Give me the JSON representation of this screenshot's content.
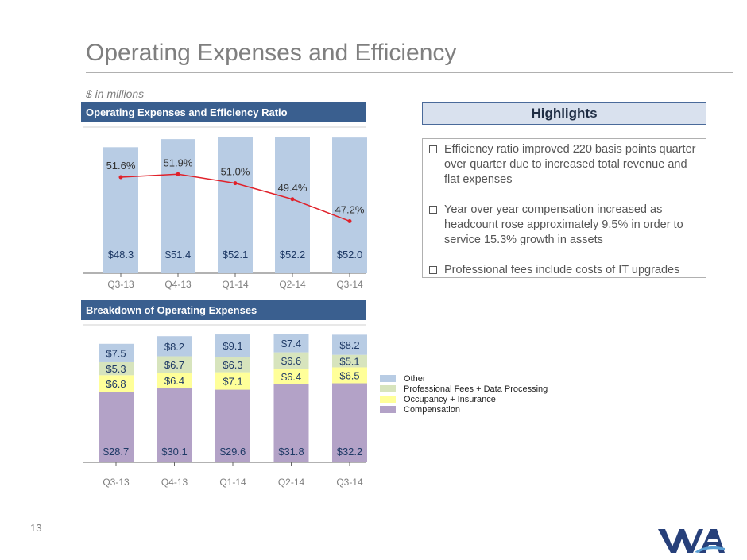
{
  "slide": {
    "title": "Operating Expenses and Efficiency",
    "units_note": "$ in millions",
    "page_number": "13"
  },
  "colors": {
    "header_bar": "#3a5f8f",
    "bar_blue": "#b8cce4",
    "line_red": "#e0212a",
    "other": "#b8cce4",
    "professional": "#d7e4bd",
    "occupancy": "#ffff99",
    "compensation": "#b3a2c7"
  },
  "chart_data": [
    {
      "type": "bar",
      "title": "Operating Expenses and Efficiency Ratio",
      "categories": [
        "Q3-13",
        "Q4-13",
        "Q1-14",
        "Q2-14",
        "Q3-14"
      ],
      "series": [
        {
          "name": "Operating Expenses",
          "values": [
            48.3,
            51.4,
            52.1,
            52.2,
            52.0
          ],
          "labels": [
            "$48.3",
            "$51.4",
            "$52.1",
            "$52.2",
            "$52.0"
          ]
        },
        {
          "name": "Efficiency Ratio",
          "kind": "line",
          "values": [
            51.6,
            51.9,
            51.0,
            49.4,
            47.2
          ],
          "labels": [
            "51.6%",
            "51.9%",
            "51.0%",
            "49.4%",
            "47.2%"
          ]
        }
      ],
      "ylim": [
        0,
        56
      ],
      "ratio_ylim": [
        0,
        58
      ]
    },
    {
      "type": "bar",
      "stacked": true,
      "title": "Breakdown of Operating Expenses",
      "categories": [
        "Q3-13",
        "Q4-13",
        "Q1-14",
        "Q2-14",
        "Q3-14"
      ],
      "series": [
        {
          "name": "Compensation",
          "values": [
            28.7,
            30.1,
            29.6,
            31.8,
            32.2
          ],
          "labels": [
            "$28.7",
            "$30.1",
            "$29.6",
            "$31.8",
            "$32.2"
          ]
        },
        {
          "name": "Occupancy + Insurance",
          "values": [
            6.8,
            6.4,
            7.1,
            6.4,
            6.5
          ],
          "labels": [
            "$6.8",
            "$6.4",
            "$7.1",
            "$6.4",
            "$6.5"
          ]
        },
        {
          "name": "Professional Fees + Data Processing",
          "values": [
            5.3,
            6.7,
            6.3,
            6.6,
            5.1
          ],
          "labels": [
            "$5.3",
            "$6.7",
            "$6.3",
            "$6.6",
            "$5.1"
          ]
        },
        {
          "name": "Other",
          "values": [
            7.5,
            8.2,
            9.1,
            7.4,
            8.2
          ],
          "labels": [
            "$7.5",
            "$8.2",
            "$9.1",
            "$7.4",
            "$8.2"
          ]
        }
      ],
      "legend": [
        "Other",
        "Professional Fees + Data Processing",
        "Occupancy + Insurance",
        "Compensation"
      ],
      "ylim": [
        0,
        56
      ]
    }
  ],
  "highlights": {
    "title": "Highlights",
    "bullets": [
      "Efficiency ratio improved 220 basis points quarter over quarter due to increased total revenue and flat expenses",
      "Year over year compensation increased as headcount rose approximately 9.5% in order to service 15.3% growth in assets",
      "Professional fees include costs of IT upgrades"
    ]
  },
  "logo": {
    "text": "WA",
    "name": "western-alliance-logo"
  }
}
